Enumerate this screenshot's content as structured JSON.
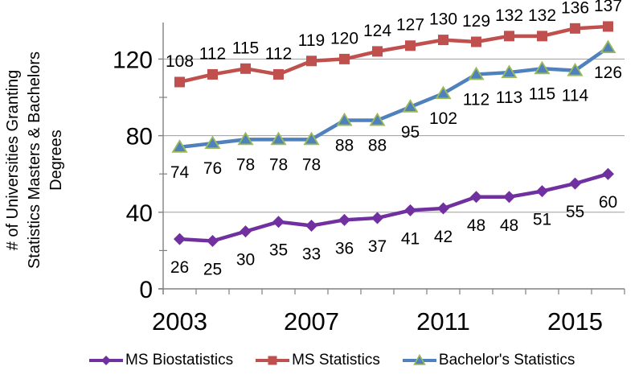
{
  "chart_data": {
    "type": "line",
    "title": "",
    "ylabel": "# of Universities Granting Statistics Masters & Bachelors Degrees",
    "ylabel_lines": [
      "# of Universities Granting",
      "Statistics Masters & Bachelors",
      "Degrees"
    ],
    "categories": [
      2003,
      2004,
      2005,
      2006,
      2007,
      2008,
      2009,
      2010,
      2011,
      2012,
      2013,
      2014,
      2015,
      2016
    ],
    "xtick_labels": [
      "2003",
      "2007",
      "2011",
      "2015"
    ],
    "xtick_years": [
      2003,
      2007,
      2011,
      2015
    ],
    "yticks": [
      0,
      40,
      80,
      120
    ],
    "y_minor_ticks": [
      20,
      60,
      100
    ],
    "ylim": [
      0,
      139
    ],
    "grid": "horizontal",
    "gridline_color": "#9D9D9D",
    "axis_color": "#808080",
    "text_color": "#000000",
    "legend_position": "bottom",
    "series": [
      {
        "name": "MS Biostatistics",
        "color": "#7030A0",
        "marker": "diamond",
        "label_side": "below",
        "values": [
          26,
          25,
          30,
          35,
          33,
          36,
          37,
          41,
          42,
          48,
          48,
          51,
          55,
          60
        ]
      },
      {
        "name": "MS Statistics",
        "color": "#C0504D",
        "marker": "square",
        "label_side": "above",
        "values": [
          108,
          112,
          115,
          112,
          119,
          120,
          124,
          127,
          130,
          129,
          132,
          132,
          136,
          137
        ]
      },
      {
        "name": "Bachelor's Statistics",
        "color": "#4F81BD",
        "marker": "triangle",
        "marker_edge": "#9BBB59",
        "label_side": "below",
        "values": [
          74,
          76,
          78,
          78,
          78,
          88,
          88,
          95,
          102,
          112,
          113,
          115,
          114,
          126
        ]
      }
    ]
  }
}
